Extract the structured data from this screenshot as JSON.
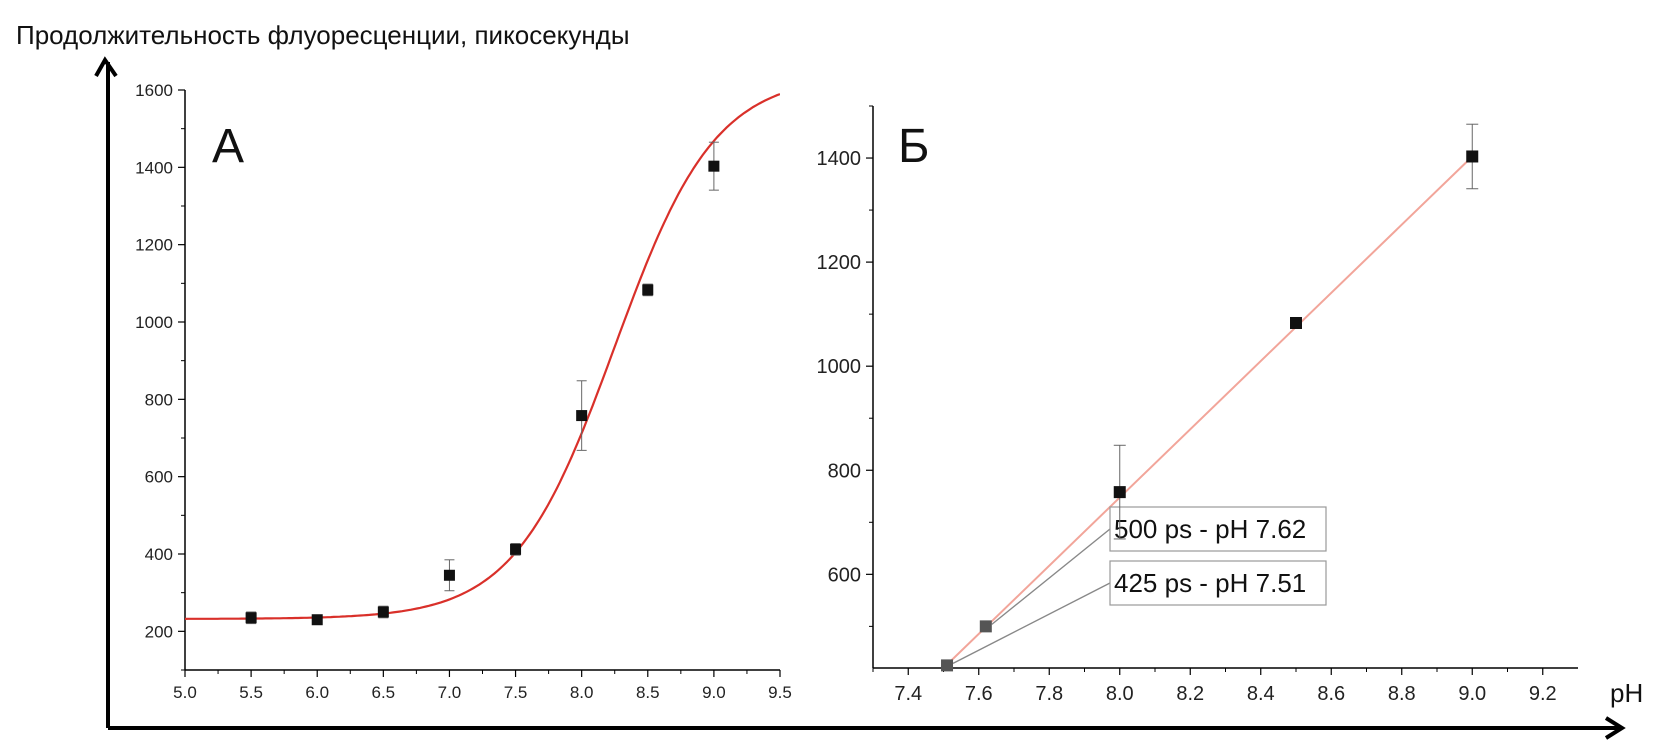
{
  "ylabel": "Продолжительность флуоресценции, пикосекунды",
  "xlabel": "pH",
  "colors": {
    "fit": "#d9302a",
    "fit_light": "#f2a59a",
    "marker": "#111111",
    "axis": "#000000"
  },
  "chart_data": [
    {
      "type": "scatter",
      "panel_label": "А",
      "xlim": [
        5.0,
        9.5
      ],
      "ylim": [
        100,
        1600
      ],
      "x_ticks": [
        "5.0",
        "5.5",
        "6.0",
        "6.5",
        "7.0",
        "7.5",
        "8.0",
        "8.5",
        "9.0",
        "9.5"
      ],
      "y_ticks": [
        "200",
        "400",
        "600",
        "800",
        "1000",
        "1200",
        "1400",
        "1600"
      ],
      "points": [
        {
          "x": 5.5,
          "y": 235,
          "err": 15
        },
        {
          "x": 6.0,
          "y": 230,
          "err": 12
        },
        {
          "x": 6.5,
          "y": 250,
          "err": 15
        },
        {
          "x": 7.0,
          "y": 345,
          "err": 40
        },
        {
          "x": 7.5,
          "y": 412,
          "err": 15
        },
        {
          "x": 8.0,
          "y": 758,
          "err": 90
        },
        {
          "x": 8.5,
          "y": 1083,
          "err": 15
        },
        {
          "x": 9.0,
          "y": 1403,
          "err": 62
        }
      ],
      "fit": {
        "type": "sigmoid",
        "bottom": 232,
        "top": 1640,
        "x0": 8.25,
        "k": 0.38
      }
    },
    {
      "type": "line",
      "panel_label": "Б",
      "xlim": [
        7.3,
        9.3
      ],
      "ylim": [
        420,
        1500
      ],
      "x_ticks": [
        "7.4",
        "7.6",
        "7.8",
        "8.0",
        "8.2",
        "8.4",
        "8.6",
        "8.8",
        "9.0",
        "9.2"
      ],
      "y_ticks": [
        "600",
        "800",
        "1000",
        "1200",
        "1400"
      ],
      "points": [
        {
          "x": 7.51,
          "y": 425,
          "err": 0,
          "gray": true
        },
        {
          "x": 7.62,
          "y": 500,
          "err": 0,
          "gray": true
        },
        {
          "x": 8.0,
          "y": 758,
          "err": 90
        },
        {
          "x": 8.5,
          "y": 1083,
          "err": 0
        },
        {
          "x": 9.0,
          "y": 1403,
          "err": 62
        }
      ],
      "fit_line": {
        "x": [
          7.5,
          9.0
        ],
        "y": [
          420,
          1403
        ]
      },
      "annotations": [
        {
          "text": "500 ps - pH 7.62",
          "target_x": 7.62,
          "target_y": 500
        },
        {
          "text": "425 ps - pH 7.51",
          "target_x": 7.51,
          "target_y": 425
        }
      ]
    }
  ]
}
